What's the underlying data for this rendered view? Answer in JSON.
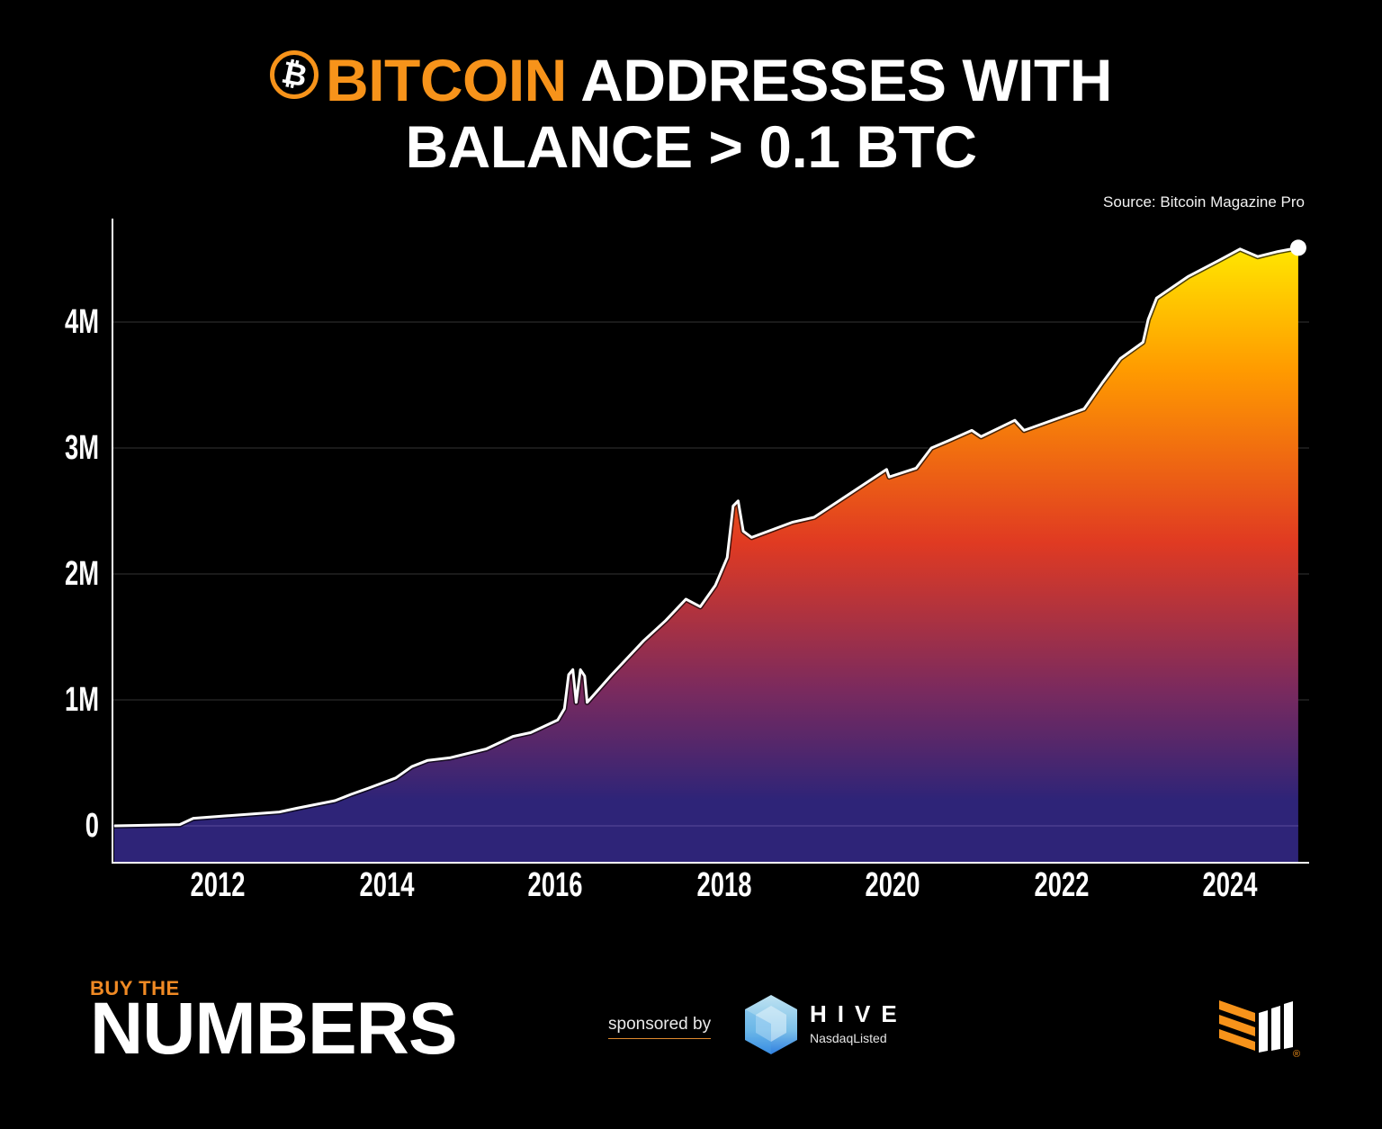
{
  "header": {
    "title_accent": "BITCOIN",
    "title_line1_rest": "ADDRESSES WITH",
    "title_line2": "BALANCE > 0.1 BTC",
    "coin_icon_glyph": "₿",
    "source": "Source: Bitcoin Magazine Pro"
  },
  "colors": {
    "background": "#000000",
    "accent": "#F7931A",
    "line": "#FFFFFF",
    "gradient_top": "#FFE600",
    "gradient_upper": "#FF9A00",
    "gradient_mid": "#E03A22",
    "gradient_lower": "#7A2A5E",
    "gradient_bottom": "#2E2478",
    "gridline": "#333333"
  },
  "chart_data": {
    "type": "area",
    "title": "Bitcoin Addresses With Balance > 0.1 BTC",
    "xlabel": "",
    "ylabel": "",
    "x_ticks": [
      "2012",
      "2014",
      "2016",
      "2018",
      "2020",
      "2022",
      "2024"
    ],
    "y_ticks": [
      "0",
      "1M",
      "2M",
      "3M",
      "4M"
    ],
    "xlim": [
      2010.75,
      2024.95
    ],
    "ylim": [
      -0.28,
      5.0
    ],
    "grid": "horizontal",
    "legend": "none",
    "end_marker": true,
    "series": [
      {
        "name": "Addresses with balance > 0.1 BTC (millions)",
        "x": [
          2010.77,
          2011.55,
          2011.71,
          2012.73,
          2012.94,
          2013.39,
          2013.58,
          2013.79,
          2014.11,
          2014.3,
          2014.49,
          2014.75,
          2015.18,
          2015.5,
          2015.71,
          2016.03,
          2016.11,
          2016.16,
          2016.21,
          2016.25,
          2016.3,
          2016.35,
          2016.38,
          2016.67,
          2017.05,
          2017.31,
          2017.55,
          2017.72,
          2017.9,
          2018.04,
          2018.11,
          2018.17,
          2018.23,
          2018.33,
          2018.81,
          2019.07,
          2019.5,
          2019.93,
          2019.96,
          2020.28,
          2020.46,
          2020.67,
          2020.94,
          2021.05,
          2021.45,
          2021.56,
          2022.06,
          2022.27,
          2022.49,
          2022.7,
          2022.97,
          2023.03,
          2023.13,
          2023.5,
          2023.87,
          2024.12,
          2024.33,
          2024.57,
          2024.81
        ],
        "values": [
          0.0,
          0.01,
          0.06,
          0.11,
          0.14,
          0.2,
          0.25,
          0.3,
          0.38,
          0.47,
          0.52,
          0.54,
          0.61,
          0.71,
          0.74,
          0.84,
          0.93,
          1.2,
          1.24,
          0.98,
          1.24,
          1.19,
          0.98,
          1.2,
          1.47,
          1.63,
          1.8,
          1.74,
          1.91,
          2.13,
          2.54,
          2.58,
          2.34,
          2.29,
          2.41,
          2.45,
          2.64,
          2.83,
          2.77,
          2.84,
          3.0,
          3.06,
          3.14,
          3.09,
          3.22,
          3.14,
          3.26,
          3.31,
          3.52,
          3.71,
          3.84,
          4.02,
          4.19,
          4.36,
          4.49,
          4.58,
          4.52,
          4.56,
          4.59
        ]
      }
    ]
  },
  "footer": {
    "brand_small": "BUY THE",
    "brand_large": "NUMBERS",
    "sponsored_label": "sponsored by",
    "sponsor_name": "HIVE",
    "sponsor_sub": "NasdaqListed",
    "registered_mark": "®"
  }
}
